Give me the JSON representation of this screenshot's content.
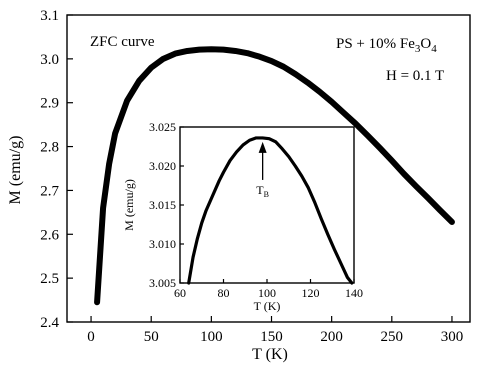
{
  "chart_data": [
    {
      "type": "line",
      "xlabel": "T (K)",
      "ylabel": "M (emu/g)",
      "xlim": [
        -20,
        315
      ],
      "ylim": [
        2.4,
        3.1
      ],
      "xticks": [
        "0",
        "50",
        "100",
        "150",
        "200",
        "250",
        "300"
      ],
      "yticks": [
        "2.4",
        "2.5",
        "2.6",
        "2.7",
        "2.8",
        "2.9",
        "3.0",
        "3.1"
      ],
      "annotations": {
        "curve_label": "ZFC curve",
        "sample_prefix": "PS + 10% Fe",
        "sample_sub1": "3",
        "sample_mid": "O",
        "sample_sub2": "4",
        "field": "H = 0.1 T"
      },
      "series": [
        {
          "x": [
            5,
            10,
            15,
            20,
            30,
            40,
            50,
            60,
            70,
            80,
            90,
            100,
            110,
            120,
            130,
            140,
            150,
            160,
            170,
            180,
            190,
            200,
            210,
            220,
            230,
            240,
            250,
            260,
            270,
            280,
            290,
            300
          ],
          "values": [
            2.445,
            2.66,
            2.76,
            2.83,
            2.905,
            2.95,
            2.98,
            3.0,
            3.012,
            3.018,
            3.021,
            3.022,
            3.021,
            3.018,
            3.013,
            3.005,
            2.995,
            2.982,
            2.965,
            2.946,
            2.925,
            2.902,
            2.877,
            2.852,
            2.825,
            2.797,
            2.768,
            2.738,
            2.71,
            2.683,
            2.655,
            2.628
          ]
        }
      ]
    },
    {
      "type": "line",
      "inset": true,
      "xlabel": "T (K)",
      "ylabel": "M (emu/g)",
      "xlim": [
        60,
        140
      ],
      "ylim": [
        3.005,
        3.025
      ],
      "xticks": [
        "60",
        "80",
        "100",
        "120",
        "140"
      ],
      "yticks": [
        "3.005",
        "3.010",
        "3.015",
        "3.020",
        "3.025"
      ],
      "annotations": {
        "marker_label": "T",
        "marker_sub": "B"
      },
      "marker_x": 98,
      "series": [
        {
          "x": [
            64,
            66,
            68,
            70,
            72,
            75,
            78,
            80,
            83,
            86,
            89,
            92,
            95,
            98,
            101,
            104,
            107,
            110,
            113,
            116,
            119,
            122,
            125,
            128,
            131,
            134,
            137,
            139
          ],
          "values": [
            3.005,
            3.0083,
            3.0107,
            3.0127,
            3.0143,
            3.0162,
            3.0181,
            3.0192,
            3.0207,
            3.0218,
            3.0227,
            3.0233,
            3.0236,
            3.0236,
            3.0235,
            3.0231,
            3.0222,
            3.0212,
            3.02,
            3.0187,
            3.0172,
            3.0153,
            3.0132,
            3.0112,
            3.0093,
            3.0075,
            3.0057,
            3.005
          ]
        }
      ]
    }
  ]
}
